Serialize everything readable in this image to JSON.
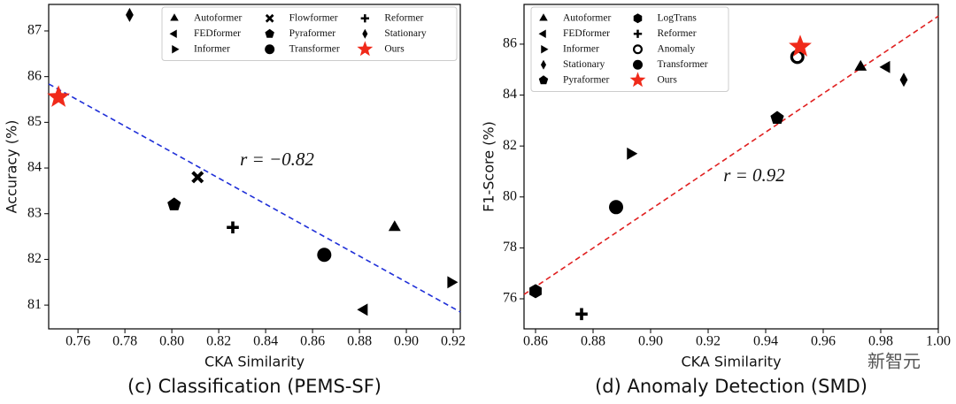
{
  "chart_data": [
    {
      "type": "scatter",
      "caption": "(c) Classification (PEMS-SF)",
      "x_label": "CKA Similarity",
      "y_label": "Accuracy (%)",
      "annotation": "r = −0.82",
      "xlim": [
        0.7475,
        0.923
      ],
      "ylim": [
        80.48,
        87.58
      ],
      "xticks": [
        0.76,
        0.78,
        {
          "value": 0.8,
          "label": "0.80"
        },
        0.82,
        0.84,
        0.86,
        0.88,
        {
          "value": 0.9,
          "label": "0.90"
        },
        0.92
      ],
      "yticks": [
        81,
        82,
        83,
        84,
        85,
        86,
        87
      ],
      "legend": "upper right",
      "fit_line": {
        "color": "#1f2fd8",
        "x": [
          0.7475,
          0.923
        ],
        "y": [
          85.84,
          80.85
        ]
      },
      "series": [
        {
          "name": "Autoformer",
          "marker": "triangle-up",
          "color": "#000000",
          "x": [
            0.895
          ],
          "values": [
            82.7
          ]
        },
        {
          "name": "FEDformer",
          "marker": "triangle-left",
          "color": "#000000",
          "x": [
            0.882
          ],
          "values": [
            80.9
          ]
        },
        {
          "name": "Informer",
          "marker": "triangle-right",
          "color": "#000000",
          "x": [
            0.919
          ],
          "values": [
            81.5
          ]
        },
        {
          "name": "Flowformer",
          "marker": "x",
          "color": "#000000",
          "x": [
            0.811
          ],
          "values": [
            83.8
          ]
        },
        {
          "name": "Pyraformer",
          "marker": "pentagon",
          "color": "#000000",
          "x": [
            0.801
          ],
          "values": [
            83.2
          ]
        },
        {
          "name": "Transformer",
          "marker": "circle",
          "color": "#000000",
          "x": [
            0.865
          ],
          "values": [
            82.1
          ]
        },
        {
          "name": "Reformer",
          "marker": "plus",
          "color": "#000000",
          "x": [
            0.826
          ],
          "values": [
            82.7
          ]
        },
        {
          "name": "Stationary",
          "marker": "diamond",
          "color": "#000000",
          "x": [
            0.782
          ],
          "values": [
            87.35
          ]
        },
        {
          "name": "Ours",
          "marker": "star",
          "color": "#f02a1a",
          "x": [
            0.7517
          ],
          "values": [
            85.55
          ]
        }
      ]
    },
    {
      "type": "scatter",
      "caption": "(d) Anomaly Detection (SMD)",
      "x_label": "CKA Similarity",
      "y_label": "F1-Score (%)",
      "annotation": "r = 0.92",
      "xlim": [
        0.856,
        1.0
      ],
      "ylim": [
        74.82,
        87.56
      ],
      "xticks": [
        0.86,
        0.88,
        {
          "value": 0.9,
          "label": "0.90"
        },
        0.92,
        0.94,
        0.96,
        0.98,
        {
          "value": 1,
          "label": "1.00"
        }
      ],
      "yticks": [
        76,
        78,
        80,
        82,
        84,
        86
      ],
      "legend": "upper left",
      "fit_line": {
        "color": "#e02020",
        "x": [
          0.856,
          1.0
        ],
        "y": [
          76.17,
          87.1
        ]
      },
      "series": [
        {
          "name": "Autoformer",
          "marker": "triangle-up",
          "color": "#000000",
          "x": [
            0.973
          ],
          "values": [
            85.1
          ]
        },
        {
          "name": "FEDformer",
          "marker": "triangle-left",
          "color": "#000000",
          "x": [
            0.982
          ],
          "values": [
            85.1
          ]
        },
        {
          "name": "Informer",
          "marker": "triangle-right",
          "color": "#000000",
          "x": [
            0.893
          ],
          "values": [
            81.7
          ]
        },
        {
          "name": "Stationary",
          "marker": "diamond",
          "color": "#000000",
          "x": [
            0.988
          ],
          "values": [
            84.6
          ]
        },
        {
          "name": "Pyraformer",
          "marker": "pentagon",
          "color": "#000000",
          "x": [
            0.944
          ],
          "values": [
            83.1
          ]
        },
        {
          "name": "LogTrans",
          "marker": "hexagon",
          "color": "#000000",
          "x": [
            0.86
          ],
          "values": [
            76.3
          ]
        },
        {
          "name": "Reformer",
          "marker": "plus",
          "color": "#000000",
          "x": [
            0.876
          ],
          "values": [
            75.4
          ]
        },
        {
          "name": "Anomaly",
          "marker": "open-circle",
          "color": "#000000",
          "x": [
            0.951
          ],
          "values": [
            85.5
          ]
        },
        {
          "name": "Transformer",
          "marker": "circle",
          "color": "#000000",
          "x": [
            0.888
          ],
          "values": [
            79.6
          ]
        },
        {
          "name": "Ours",
          "marker": "star",
          "color": "#f02a1a",
          "x": [
            0.952
          ],
          "values": [
            85.9
          ]
        }
      ]
    }
  ],
  "watermark": "新智元"
}
